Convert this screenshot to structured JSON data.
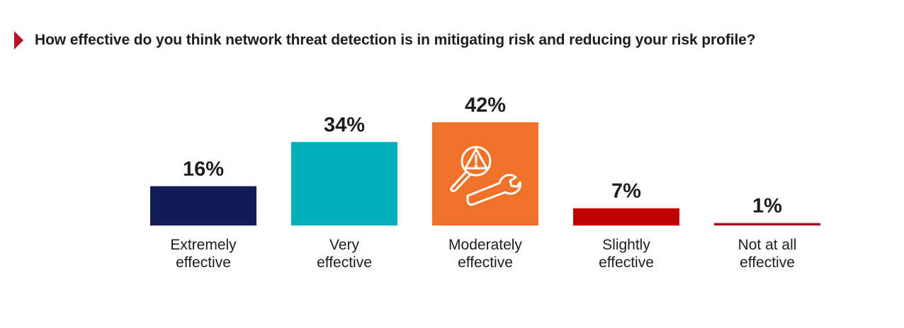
{
  "question": "How effective do you think network threat detection is in mitigating risk and reducing your risk profile?",
  "icons": {
    "featured_bar_icon": "alert-triangle-magnifier-wrench-icon"
  },
  "chart_data": {
    "type": "bar",
    "categories": [
      [
        "Extremely",
        "effective"
      ],
      [
        "Very",
        "effective"
      ],
      [
        "Moderately",
        "effective"
      ],
      [
        "Slightly",
        "effective"
      ],
      [
        "Not at all",
        "effective"
      ]
    ],
    "values": [
      16,
      34,
      42,
      7,
      1
    ],
    "value_labels": [
      "16%",
      "34%",
      "42%",
      "7%",
      "1%"
    ],
    "colors": [
      "#141c55",
      "#00aebc",
      "#ee722a",
      "#c00000",
      "#a50e24"
    ],
    "unit": "%",
    "ylim": [
      0,
      42
    ],
    "grid": false,
    "legend": "none"
  }
}
